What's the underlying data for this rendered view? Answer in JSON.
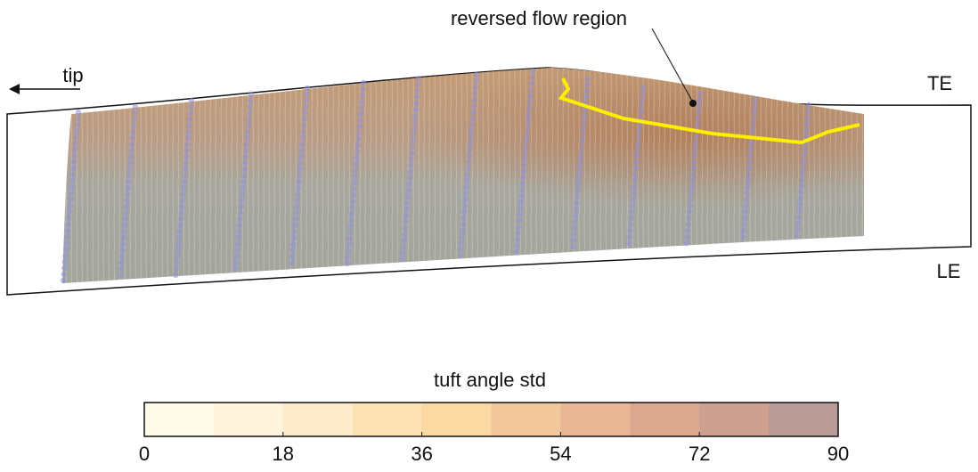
{
  "annotations": {
    "tip": "tip",
    "te": "TE",
    "le": "LE",
    "reversed": "reversed flow region"
  },
  "colorbar": {
    "title": "tuft angle std",
    "lim": [
      0,
      90
    ],
    "ticks": [
      0,
      18,
      36,
      54,
      72,
      90
    ],
    "colors": [
      "#fffbea",
      "#fff5dc",
      "#fdeccb",
      "#fde3b4",
      "#fcd8a2",
      "#f3c79c",
      "#e9b796",
      "#dba890",
      "#cda08f",
      "#b89b96"
    ]
  }
}
